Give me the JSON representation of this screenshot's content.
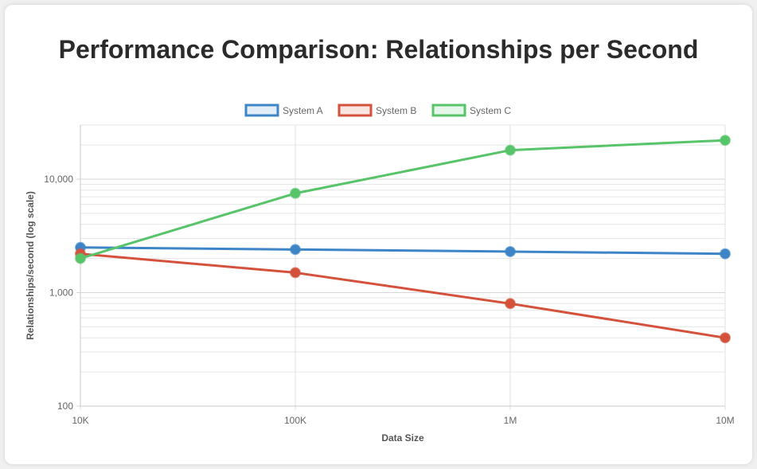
{
  "chart_data": {
    "type": "line",
    "title": "Performance Comparison: Relationships per Second",
    "xlabel": "Data Size",
    "ylabel": "Relationships/second (log scale)",
    "y_scale": "log",
    "ylim": [
      100,
      30000
    ],
    "grid": true,
    "legend_position": "top",
    "categories": [
      "10K",
      "100K",
      "1M",
      "10M"
    ],
    "y_tick_labels": [
      "100",
      "1,000",
      "10,000"
    ],
    "series": [
      {
        "name": "System A",
        "color": "#3d85c6",
        "values": [
          2500,
          2400,
          2300,
          2200
        ]
      },
      {
        "name": "System B",
        "color": "#d4523b",
        "values": [
          2200,
          1500,
          800,
          400
        ]
      },
      {
        "name": "System C",
        "color": "#58c46a",
        "values": [
          2000,
          7500,
          18000,
          22000
        ]
      }
    ]
  }
}
